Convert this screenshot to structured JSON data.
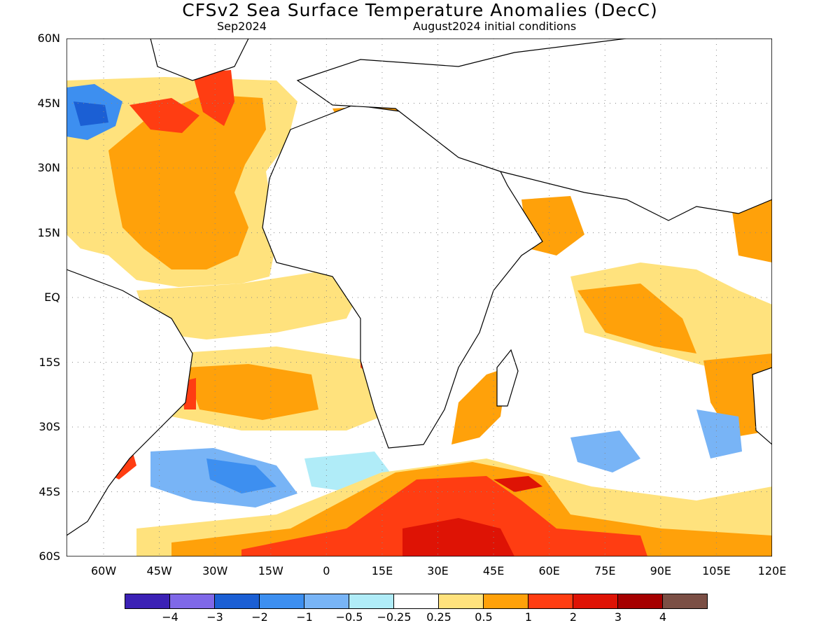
{
  "title": "CFSv2 Sea Surface Temperature Anomalies (DecC)",
  "forecast_month": "Sep2024",
  "initial_conditions": "August2024 initial conditions",
  "map": {
    "lon_range": [
      -70,
      120
    ],
    "lat_range": [
      -60,
      60
    ],
    "y_ticks": [
      "60N",
      "45N",
      "30N",
      "15N",
      "EQ",
      "15S",
      "30S",
      "45S",
      "60S"
    ],
    "x_ticks": [
      "60W",
      "45W",
      "30W",
      "15W",
      "0",
      "15E",
      "30E",
      "45E",
      "60E",
      "75E",
      "90E",
      "105E",
      "120E"
    ],
    "grid": "dotted"
  },
  "legend": {
    "colors": [
      "#3b21b5",
      "#7f68e8",
      "#1b5fd4",
      "#3d8ff0",
      "#78b4f6",
      "#b0ecf8",
      "#ffffff",
      "#ffe27d",
      "#ffa10a",
      "#ff3d12",
      "#de1305",
      "#a50000",
      "#7b4f45"
    ],
    "labels": [
      "−4",
      "−3",
      "−2",
      "−1",
      "−0.5",
      "−0.25",
      "0.25",
      "0.5",
      "1",
      "2",
      "3",
      "4"
    ]
  }
}
